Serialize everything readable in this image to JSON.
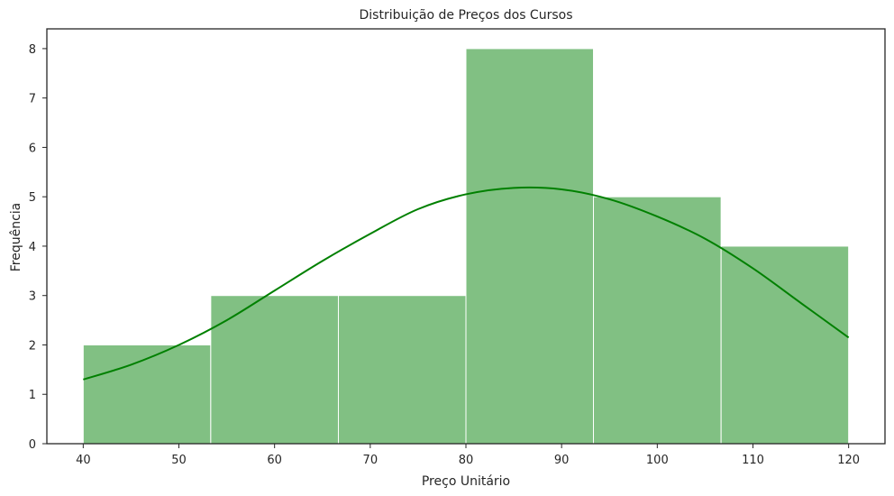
{
  "chart_data": {
    "type": "bar",
    "title": "Distribuição de Preços dos Cursos",
    "xlabel": "Preço Unitário",
    "ylabel": "Frequência",
    "xlim": [
      36.2,
      123.8
    ],
    "ylim": [
      0,
      8.4
    ],
    "grid": false,
    "x_ticks": [
      40,
      50,
      60,
      70,
      80,
      90,
      100,
      110,
      120
    ],
    "y_ticks": [
      0,
      1,
      2,
      3,
      4,
      5,
      6,
      7,
      8
    ],
    "bins": [
      {
        "x0": 40,
        "x1": 53.33,
        "count": 2
      },
      {
        "x0": 53.33,
        "x1": 66.67,
        "count": 3
      },
      {
        "x0": 66.67,
        "x1": 80,
        "count": 3
      },
      {
        "x0": 80,
        "x1": 93.33,
        "count": 8
      },
      {
        "x0": 93.33,
        "x1": 106.67,
        "count": 5
      },
      {
        "x0": 106.67,
        "x1": 120,
        "count": 4
      }
    ],
    "kde": {
      "x": [
        40,
        45,
        50,
        55,
        60,
        65,
        70,
        75,
        80,
        85,
        90,
        95,
        100,
        105,
        110,
        115,
        120
      ],
      "y": [
        1.3,
        1.6,
        2.0,
        2.5,
        3.1,
        3.7,
        4.25,
        4.75,
        5.05,
        5.18,
        5.15,
        4.95,
        4.6,
        4.15,
        3.55,
        2.85,
        2.15
      ]
    },
    "colors": {
      "bar_fill": "#81c083",
      "bar_edge": "#ffffff",
      "kde_line": "#008000",
      "axis": "#262626"
    }
  }
}
